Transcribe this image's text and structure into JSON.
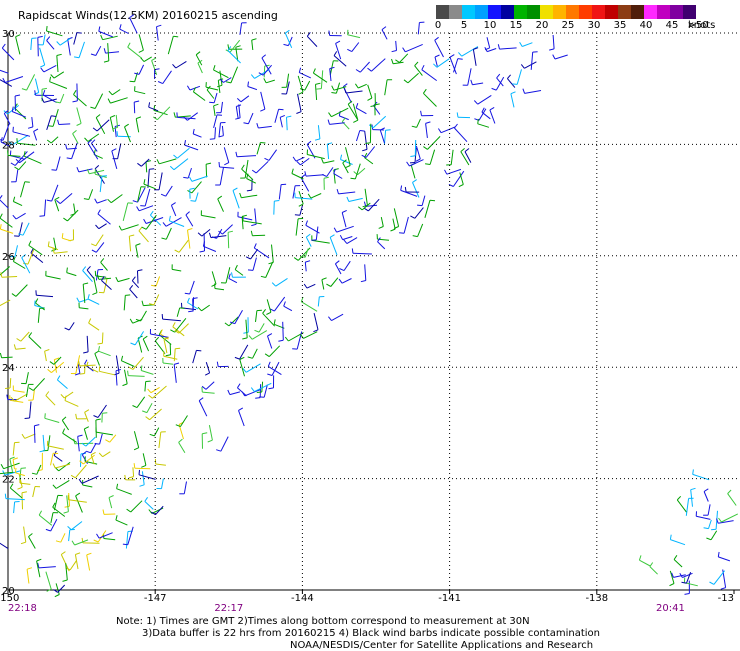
{
  "title": "Rapidscat Winds(12.5KM) 20160215 ascending",
  "colorbar": {
    "labels": [
      "0",
      "5",
      "10",
      "15",
      "20",
      "25",
      "30",
      "35",
      "40",
      "45",
      ">50"
    ],
    "unit": "knots",
    "colors": [
      "#4a4a4a",
      "#8a8a8a",
      "#00c8ff",
      "#00a0ff",
      "#1414ff",
      "#0000a0",
      "#00b400",
      "#009000",
      "#f0e000",
      "#ffb400",
      "#ff7800",
      "#ff3c00",
      "#f01414",
      "#c00000",
      "#8c3c14",
      "#501e0a",
      "#ff28ff",
      "#c000c0",
      "#8000a0",
      "#400070"
    ]
  },
  "chart_data": {
    "type": "wind barb map",
    "x_ticks": [
      "-150",
      "-147",
      "-144",
      "-141",
      "-138",
      "-13"
    ],
    "y_ticks": [
      "30",
      "28",
      "26",
      "24",
      "22",
      "20"
    ],
    "xlim": [
      -150,
      -135
    ],
    "ylim": [
      20,
      30
    ],
    "grid": true,
    "time_labels": [
      {
        "lon": -150,
        "text": "22:18",
        "color": "#800080"
      },
      {
        "lon": -145.5,
        "text": "22:17",
        "color": "#800080"
      },
      {
        "lon": -136.5,
        "text": "20:41",
        "color": "#800080"
      }
    ]
  },
  "notes": [
    "Note: 1) Times are GMT 2)Times along bottom correspond to measurement at 30N",
    "3)Data buffer is 22 hrs from 20160215 4) Black wind barbs indicate possible contamination",
    "NOAA/NESDIS/Center for Satellite Applications and Research"
  ]
}
